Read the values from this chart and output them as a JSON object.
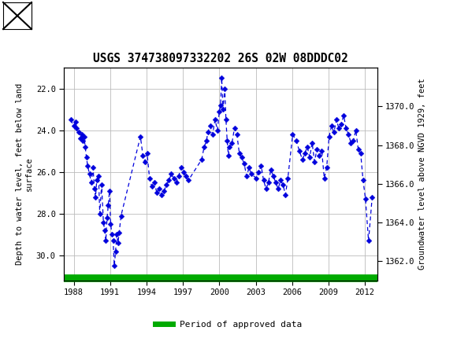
{
  "title": "USGS 374738097332202 26S 02W 08DDDC02",
  "ylabel_left": "Depth to water level, feet below land\nsurface",
  "ylabel_right": "Groundwater level above NGVD 1929, feet",
  "ylim_left": [
    31.2,
    21.0
  ],
  "ylim_right": [
    1361.0,
    1372.0
  ],
  "yticks_left": [
    22.0,
    24.0,
    26.0,
    28.0,
    30.0
  ],
  "yticks_right": [
    1362.0,
    1364.0,
    1366.0,
    1368.0,
    1370.0
  ],
  "xticks": [
    1988,
    1991,
    1994,
    1997,
    2000,
    2003,
    2006,
    2009,
    2012
  ],
  "xlim": [
    1987.2,
    2013.0
  ],
  "header_color": "#00695c",
  "line_color": "#0000dd",
  "marker_color": "#0000dd",
  "approved_color": "#00aa00",
  "background_color": "#ffffff",
  "grid_color": "#bbbbbb",
  "legend_label": "Period of approved data",
  "years": [
    1987.75,
    1988.0,
    1988.15,
    1988.25,
    1988.4,
    1988.55,
    1988.65,
    1988.75,
    1988.85,
    1988.95,
    1989.05,
    1989.15,
    1989.3,
    1989.45,
    1989.6,
    1989.7,
    1989.8,
    1989.9,
    1990.05,
    1990.15,
    1990.3,
    1990.45,
    1990.55,
    1990.65,
    1990.75,
    1990.85,
    1990.95,
    1991.05,
    1991.15,
    1991.25,
    1991.35,
    1991.45,
    1991.55,
    1991.65,
    1991.75,
    1991.9,
    1993.5,
    1993.7,
    1993.85,
    1994.05,
    1994.25,
    1994.45,
    1994.65,
    1994.85,
    1995.05,
    1995.25,
    1995.45,
    1995.65,
    1995.85,
    1996.05,
    1996.25,
    1996.45,
    1996.65,
    1996.85,
    1997.05,
    1997.25,
    1997.45,
    1998.55,
    1998.75,
    1998.95,
    1999.05,
    1999.25,
    1999.45,
    1999.65,
    1999.85,
    2000.0,
    2000.1,
    2000.2,
    2000.3,
    2000.45,
    2000.55,
    2000.65,
    2000.75,
    2000.85,
    2001.05,
    2001.25,
    2001.45,
    2001.65,
    2001.85,
    2002.05,
    2002.25,
    2002.45,
    2002.65,
    2003.05,
    2003.25,
    2003.45,
    2003.65,
    2003.85,
    2004.05,
    2004.25,
    2004.45,
    2004.65,
    2004.85,
    2005.05,
    2005.25,
    2005.45,
    2005.65,
    2006.05,
    2006.35,
    2006.6,
    2006.85,
    2007.05,
    2007.25,
    2007.45,
    2007.65,
    2007.85,
    2008.05,
    2008.25,
    2008.45,
    2008.65,
    2008.85,
    2009.05,
    2009.25,
    2009.45,
    2009.65,
    2009.85,
    2010.05,
    2010.25,
    2010.45,
    2010.65,
    2010.85,
    2011.05,
    2011.25,
    2011.45,
    2011.65,
    2011.85,
    2012.05,
    2012.3,
    2012.6
  ],
  "depths": [
    23.5,
    23.8,
    23.6,
    23.9,
    24.1,
    24.4,
    24.2,
    24.5,
    24.3,
    24.8,
    25.3,
    25.7,
    26.1,
    26.5,
    25.8,
    26.8,
    27.2,
    26.4,
    26.2,
    28.0,
    26.6,
    28.4,
    28.8,
    29.3,
    28.2,
    27.6,
    26.9,
    28.5,
    29.0,
    29.3,
    30.5,
    29.8,
    29.0,
    29.4,
    28.9,
    28.1,
    24.3,
    25.2,
    25.5,
    25.1,
    26.3,
    26.7,
    26.5,
    27.0,
    26.8,
    27.1,
    26.9,
    26.6,
    26.4,
    26.1,
    26.3,
    26.5,
    26.2,
    25.8,
    26.0,
    26.2,
    26.4,
    25.4,
    24.8,
    24.5,
    24.1,
    23.8,
    24.2,
    23.5,
    24.0,
    23.1,
    22.8,
    21.5,
    23.0,
    22.0,
    23.5,
    24.5,
    25.2,
    24.8,
    24.6,
    23.9,
    24.2,
    25.1,
    25.3,
    25.6,
    26.2,
    25.8,
    26.1,
    26.3,
    26.0,
    25.7,
    26.4,
    26.8,
    26.5,
    25.9,
    26.2,
    26.5,
    26.8,
    26.4,
    26.6,
    27.1,
    26.3,
    24.2,
    24.5,
    25.0,
    25.4,
    25.1,
    24.8,
    25.3,
    24.6,
    25.5,
    24.9,
    25.2,
    25.0,
    26.3,
    25.8,
    24.3,
    23.8,
    24.1,
    23.5,
    23.9,
    23.7,
    23.3,
    23.9,
    24.2,
    24.6,
    24.5,
    24.0,
    24.9,
    25.1,
    26.4,
    27.3,
    29.3,
    27.2
  ]
}
